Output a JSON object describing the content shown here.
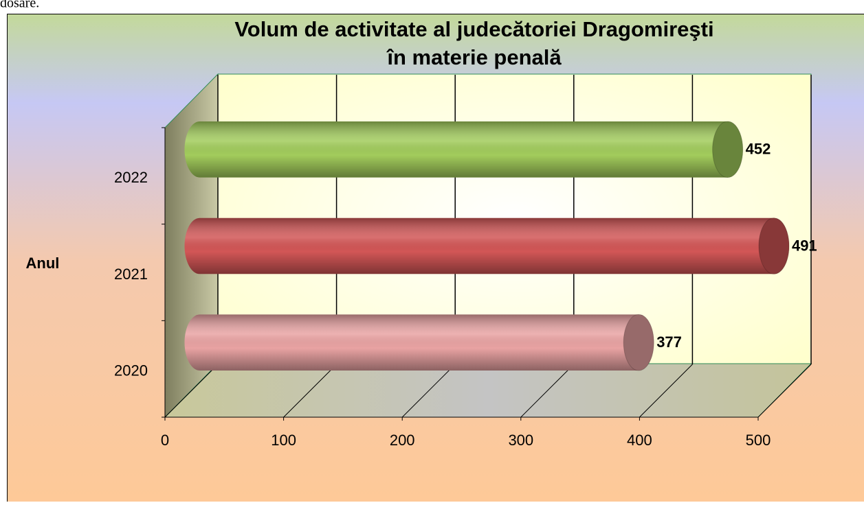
{
  "header": {
    "text": "dosare."
  },
  "chart_data": {
    "type": "bar3d",
    "orientation": "horizontal",
    "title": [
      "Volum de activitate al judecătoriei Dragomireşti",
      "în materie penală"
    ],
    "y_label": "Anul",
    "categories": [
      "2020",
      "2021",
      "2022"
    ],
    "values": [
      377,
      491,
      452
    ],
    "colors": [
      "#e9a3a3",
      "#d25656",
      "#a2cc5c"
    ],
    "xlim": [
      0,
      500
    ],
    "xticks": [
      0,
      100,
      200,
      300,
      400,
      500
    ],
    "grid": true
  }
}
